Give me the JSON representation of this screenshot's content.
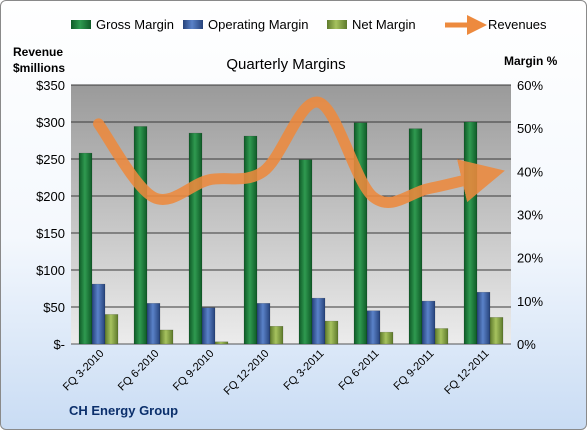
{
  "chart_data": {
    "type": "bar",
    "title": "Quarterly Margins",
    "categories": [
      "FQ 3-2010",
      "FQ 6-2010",
      "FQ 9-2010",
      "FQ 12-2010",
      "FQ 3-2011",
      "FQ 6-2011",
      "FQ 9-2011",
      "FQ 12-2011"
    ],
    "series": [
      {
        "name": "Gross Margin",
        "axis": "left",
        "color": "#1e7a3a",
        "values": [
          258,
          294,
          285,
          281,
          249,
          299,
          291,
          300
        ]
      },
      {
        "name": "Operating Margin",
        "axis": "left",
        "color": "#3d62a8",
        "values": [
          81,
          55,
          49,
          55,
          62,
          45,
          58,
          70
        ]
      },
      {
        "name": "Net Margin",
        "axis": "left",
        "color": "#8aa64a",
        "values": [
          40,
          19,
          3,
          24,
          31,
          16,
          21,
          36
        ]
      }
    ],
    "line_series": {
      "name": "Revenues",
      "axis": "right",
      "color": "#ed8a3e",
      "values": [
        51,
        34,
        38,
        40,
        56,
        34,
        36,
        39
      ]
    },
    "ylabel_left": "Revenue\n$millions",
    "ylabel_right": "Margin %",
    "ylim_left": [
      0,
      350
    ],
    "ylim_right": [
      0,
      60
    ],
    "yticks_left": [
      "$-",
      "$50",
      "$100",
      "$150",
      "$200",
      "$250",
      "$300",
      "$350"
    ],
    "yticks_right": [
      "0%",
      "10%",
      "20%",
      "30%",
      "40%",
      "50%",
      "60%"
    ],
    "grid": true,
    "legend_position": "top"
  },
  "footer": {
    "company": "CH Energy Group"
  },
  "labels": {
    "ylabel_left_line1": "Revenue",
    "ylabel_left_line2": "$millions",
    "ylabel_right": "Margin %"
  }
}
